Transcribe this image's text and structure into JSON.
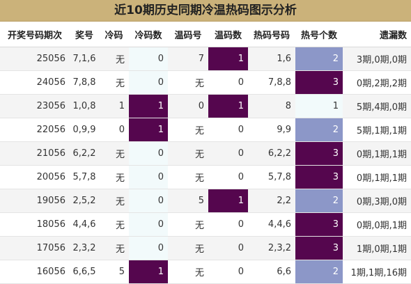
{
  "title": "近10期历史同期冷温热码图示分析",
  "headers": [
    "开奖号码期次",
    "奖号",
    "冷码",
    "冷码数",
    "温码号",
    "温码数",
    "热码号码",
    "热号个数",
    "遗漏数"
  ],
  "rows": [
    {
      "issue": "25056",
      "number": "7,1,6",
      "cold": "无",
      "cold_count": "0",
      "warm": "7",
      "warm_count": "1",
      "hot": "1,6",
      "hot_count": "2",
      "miss": "3期,0期,0期"
    },
    {
      "issue": "24056",
      "number": "7,8,8",
      "cold": "无",
      "cold_count": "0",
      "warm": "无",
      "warm_count": "0",
      "hot": "7,8,8",
      "hot_count": "3",
      "miss": "0期,2期,2期"
    },
    {
      "issue": "23056",
      "number": "1,0,8",
      "cold": "1",
      "cold_count": "1",
      "warm": "0",
      "warm_count": "1",
      "hot": "8",
      "hot_count": "1",
      "miss": "5期,4期,0期"
    },
    {
      "issue": "22056",
      "number": "0,9,9",
      "cold": "0",
      "cold_count": "1",
      "warm": "无",
      "warm_count": "0",
      "hot": "9,9",
      "hot_count": "2",
      "miss": "5期,1期,1期"
    },
    {
      "issue": "21056",
      "number": "6,2,2",
      "cold": "无",
      "cold_count": "0",
      "warm": "无",
      "warm_count": "0",
      "hot": "6,2,2",
      "hot_count": "3",
      "miss": "0期,1期,1期"
    },
    {
      "issue": "20056",
      "number": "5,7,8",
      "cold": "无",
      "cold_count": "0",
      "warm": "无",
      "warm_count": "0",
      "hot": "5,7,8",
      "hot_count": "3",
      "miss": "0期,1期,1期"
    },
    {
      "issue": "19056",
      "number": "2,5,2",
      "cold": "无",
      "cold_count": "0",
      "warm": "5",
      "warm_count": "1",
      "hot": "2,2",
      "hot_count": "2",
      "miss": "0期,3期,0期"
    },
    {
      "issue": "18056",
      "number": "4,4,6",
      "cold": "无",
      "cold_count": "0",
      "warm": "无",
      "warm_count": "0",
      "hot": "4,4,6",
      "hot_count": "3",
      "miss": "0期,0期,1期"
    },
    {
      "issue": "17056",
      "number": "2,3,2",
      "cold": "无",
      "cold_count": "0",
      "warm": "无",
      "warm_count": "0",
      "hot": "2,3,2",
      "hot_count": "3",
      "miss": "1期,0期,1期"
    },
    {
      "issue": "16056",
      "number": "6,6,5",
      "cold": "5",
      "cold_count": "1",
      "warm": "无",
      "warm_count": "0",
      "hot": "6,6",
      "hot_count": "2",
      "miss": "1期,1期,16期"
    }
  ],
  "colors": {
    "title_bg": "#cbb27a",
    "highlight_purple": "#55064e",
    "highlight_blue": "#8c97c8"
  }
}
